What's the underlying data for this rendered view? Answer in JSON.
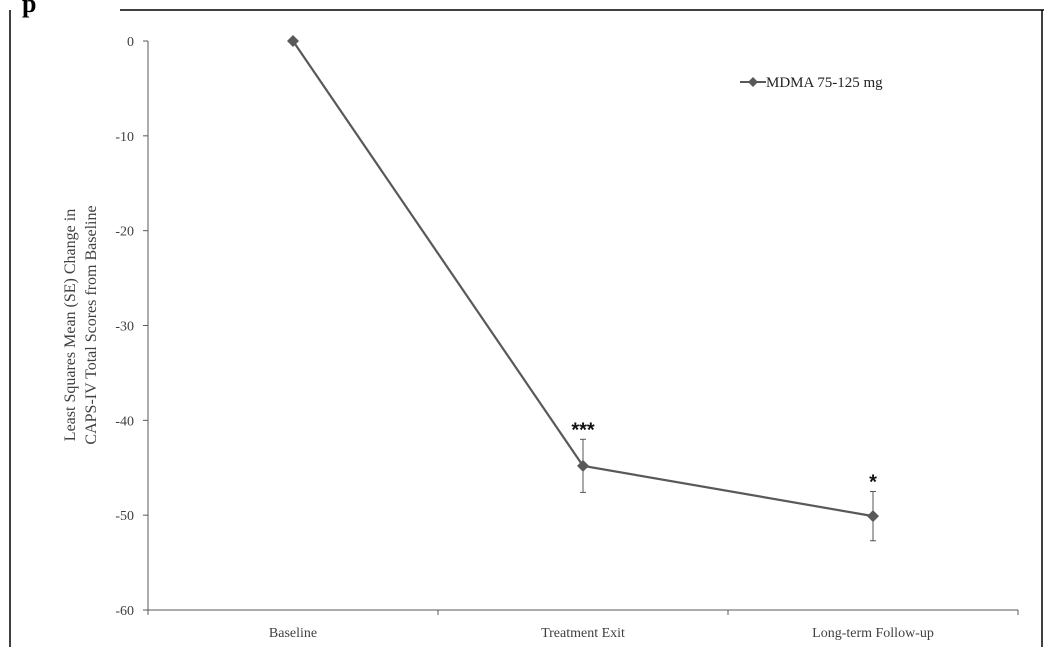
{
  "chart_data": {
    "type": "line",
    "title": "p",
    "xlabel": "",
    "ylabel_lines": [
      "Least Squares Mean (SE) Change in",
      "CAPS-IV Total Scores from Baseline"
    ],
    "categories": [
      "Baseline",
      "Treatment Exit",
      "Long-term Follow-up"
    ],
    "series": [
      {
        "name": "MDMA 75-125 mg",
        "values": [
          0,
          -44.8,
          -50.1
        ],
        "se": [
          0,
          2.8,
          2.6
        ],
        "significance": [
          "",
          "***",
          "*"
        ]
      }
    ],
    "ylim": [
      -60,
      0
    ],
    "yticks": [
      "0",
      "-10",
      "-20",
      "-30",
      "-40",
      "-50",
      "-60"
    ],
    "legend_position": "top-right",
    "grid": false,
    "colors": {
      "series": "#595959",
      "axis": "#595959",
      "text": "#404040"
    }
  }
}
